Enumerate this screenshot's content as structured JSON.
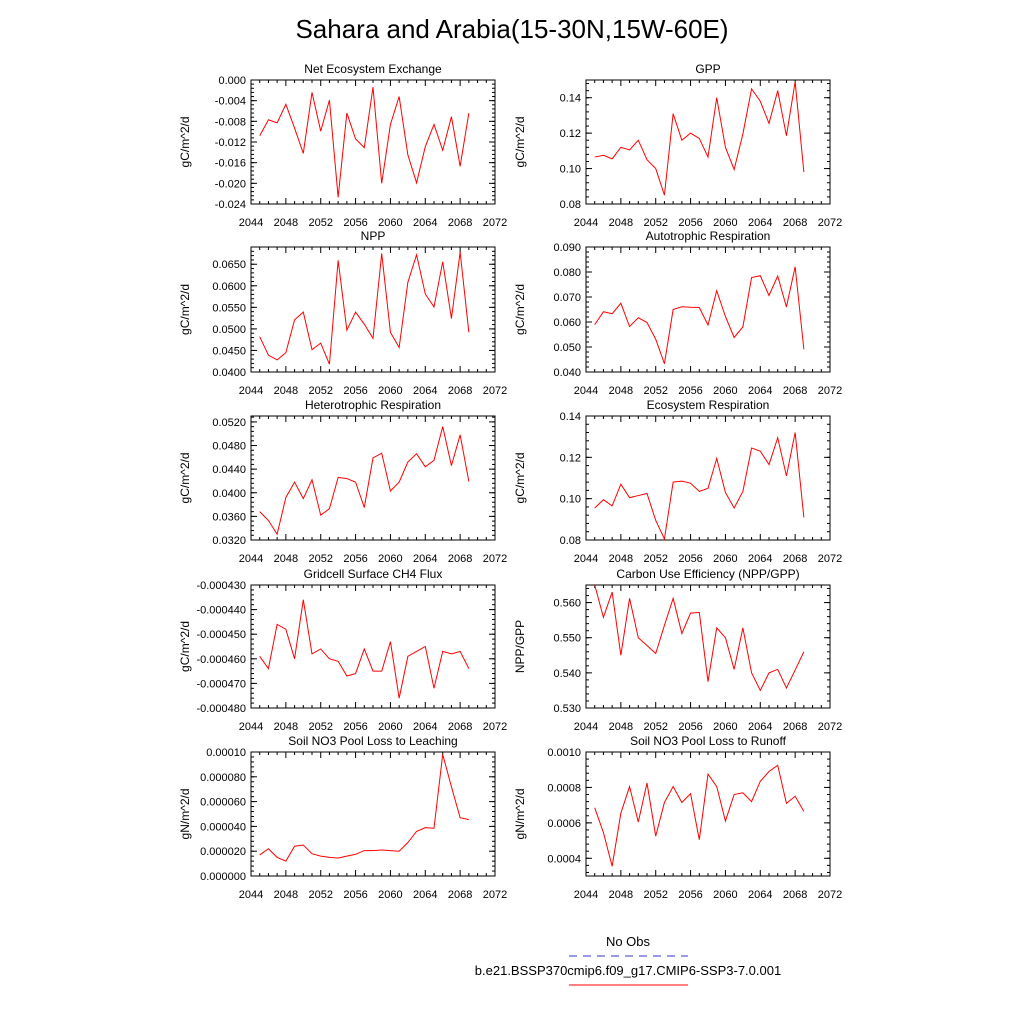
{
  "page": {
    "title": "Sahara and Arabia(15-30N,15W-60E)"
  },
  "legend": {
    "obs_label": "No Obs",
    "model_label": "b.e21.BSSP370cmip6.f09_g17.CMIP6-SSP3-7.0.001",
    "obs_color": "#3333cc",
    "model_color": "#ff0000"
  },
  "chart_data": [
    {
      "type": "line",
      "title": "Net Ecosystem Exchange",
      "ylabel": "gC/m^2/d",
      "xlim": [
        2044,
        2072
      ],
      "xticks": [
        "2044",
        "2048",
        "2052",
        "2056",
        "2060",
        "2064",
        "2068",
        "2072"
      ],
      "ylim": [
        -0.024,
        0.0
      ],
      "yticks": [
        "-0.024",
        "-0.020",
        "-0.016",
        "-0.012",
        "-0.008",
        "-0.004",
        "0.000"
      ],
      "x": [
        2045,
        2046,
        2047,
        2048,
        2049,
        2050,
        2051,
        2052,
        2053,
        2054,
        2055,
        2056,
        2057,
        2058,
        2059,
        2060,
        2061,
        2062,
        2063,
        2064,
        2065,
        2066,
        2067,
        2068,
        2069
      ],
      "series": [
        {
          "values": [
            -0.0108,
            -0.0077,
            -0.0083,
            -0.0047,
            -0.0093,
            -0.0142,
            -0.0024,
            -0.0099,
            -0.0039,
            -0.0227,
            -0.0064,
            -0.0114,
            -0.0131,
            -0.0014,
            -0.02,
            -0.0086,
            -0.0032,
            -0.0145,
            -0.0199,
            -0.0129,
            -0.0086,
            -0.0136,
            -0.0071,
            -0.0167,
            -0.0064
          ]
        }
      ]
    },
    {
      "type": "line",
      "title": "GPP",
      "ylabel": "gC/m^2/d",
      "xlim": [
        2044,
        2072
      ],
      "xticks": [
        "2044",
        "2048",
        "2052",
        "2056",
        "2060",
        "2064",
        "2068",
        "2072"
      ],
      "ylim": [
        0.08,
        0.15
      ],
      "yticks": [
        "0.08",
        "0.10",
        "0.12",
        "0.14"
      ],
      "x": [
        2045,
        2046,
        2047,
        2048,
        2049,
        2050,
        2051,
        2052,
        2053,
        2054,
        2055,
        2056,
        2057,
        2058,
        2059,
        2060,
        2061,
        2062,
        2063,
        2064,
        2065,
        2066,
        2067,
        2068,
        2069
      ],
      "series": [
        {
          "values": [
            0.1065,
            0.1075,
            0.1055,
            0.112,
            0.1105,
            0.116,
            0.105,
            0.1,
            0.085,
            0.131,
            0.116,
            0.12,
            0.117,
            0.1065,
            0.14,
            0.112,
            0.0995,
            0.1195,
            0.145,
            0.138,
            0.1255,
            0.144,
            0.1185,
            0.149,
            0.098
          ]
        }
      ]
    },
    {
      "type": "line",
      "title": "NPP",
      "ylabel": "gC/m^2/d",
      "xlim": [
        2044,
        2072
      ],
      "xticks": [
        "2044",
        "2048",
        "2052",
        "2056",
        "2060",
        "2064",
        "2068",
        "2072"
      ],
      "ylim": [
        0.04,
        0.069
      ],
      "yticks": [
        "0.0400",
        "0.0450",
        "0.0500",
        "0.0550",
        "0.0600",
        "0.0650"
      ],
      "x": [
        2045,
        2046,
        2047,
        2048,
        2049,
        2050,
        2051,
        2052,
        2053,
        2054,
        2055,
        2056,
        2057,
        2058,
        2059,
        2060,
        2061,
        2062,
        2063,
        2064,
        2065,
        2066,
        2067,
        2068,
        2069
      ],
      "series": [
        {
          "values": [
            0.0482,
            0.0439,
            0.0428,
            0.0445,
            0.0521,
            0.0539,
            0.0452,
            0.0467,
            0.0418,
            0.0659,
            0.0497,
            0.0539,
            0.0511,
            0.0478,
            0.0675,
            0.0492,
            0.0457,
            0.0608,
            0.0672,
            0.0581,
            0.0551,
            0.0656,
            0.0524,
            0.0678,
            0.0492
          ]
        }
      ]
    },
    {
      "type": "line",
      "title": "Autotrophic Respiration",
      "ylabel": "gC/m^2/d",
      "xlim": [
        2044,
        2072
      ],
      "xticks": [
        "2044",
        "2048",
        "2052",
        "2056",
        "2060",
        "2064",
        "2068",
        "2072"
      ],
      "ylim": [
        0.04,
        0.09
      ],
      "yticks": [
        "0.040",
        "0.050",
        "0.060",
        "0.070",
        "0.080",
        "0.090"
      ],
      "x": [
        2045,
        2046,
        2047,
        2048,
        2049,
        2050,
        2051,
        2052,
        2053,
        2054,
        2055,
        2056,
        2057,
        2058,
        2059,
        2060,
        2061,
        2062,
        2063,
        2064,
        2065,
        2066,
        2067,
        2068,
        2069
      ],
      "series": [
        {
          "values": [
            0.0589,
            0.0641,
            0.0633,
            0.0675,
            0.0582,
            0.0617,
            0.0598,
            0.0531,
            0.0433,
            0.065,
            0.0661,
            0.0659,
            0.0658,
            0.0588,
            0.0725,
            0.0622,
            0.0538,
            0.058,
            0.0778,
            0.0785,
            0.0706,
            0.0784,
            0.066,
            0.0821,
            0.0491
          ]
        }
      ]
    },
    {
      "type": "line",
      "title": "Heterotrophic Respiration",
      "ylabel": "gC/m^2/d",
      "xlim": [
        2044,
        2072
      ],
      "xticks": [
        "2044",
        "2048",
        "2052",
        "2056",
        "2060",
        "2064",
        "2068",
        "2072"
      ],
      "ylim": [
        0.032,
        0.053
      ],
      "yticks": [
        "0.0320",
        "0.0360",
        "0.0400",
        "0.0440",
        "0.0480",
        "0.0520"
      ],
      "x": [
        2045,
        2046,
        2047,
        2048,
        2049,
        2050,
        2051,
        2052,
        2053,
        2054,
        2055,
        2056,
        2057,
        2058,
        2059,
        2060,
        2061,
        2062,
        2063,
        2064,
        2065,
        2066,
        2067,
        2068,
        2069
      ],
      "series": [
        {
          "values": [
            0.0368,
            0.0353,
            0.033,
            0.0392,
            0.0418,
            0.039,
            0.0422,
            0.0362,
            0.0373,
            0.0426,
            0.0424,
            0.0418,
            0.0375,
            0.0459,
            0.0467,
            0.0403,
            0.0418,
            0.0452,
            0.0466,
            0.0444,
            0.0455,
            0.0512,
            0.0446,
            0.0498,
            0.0419
          ]
        }
      ]
    },
    {
      "type": "line",
      "title": "Ecosystem Respiration",
      "ylabel": "gC/m^2/d",
      "xlim": [
        2044,
        2072
      ],
      "xticks": [
        "2044",
        "2048",
        "2052",
        "2056",
        "2060",
        "2064",
        "2068",
        "2072"
      ],
      "ylim": [
        0.08,
        0.14
      ],
      "yticks": [
        "0.08",
        "0.10",
        "0.12",
        "0.14"
      ],
      "x": [
        2045,
        2046,
        2047,
        2048,
        2049,
        2050,
        2051,
        2052,
        2053,
        2054,
        2055,
        2056,
        2057,
        2058,
        2059,
        2060,
        2061,
        2062,
        2063,
        2064,
        2065,
        2066,
        2067,
        2068,
        2069
      ],
      "series": [
        {
          "values": [
            0.0955,
            0.0995,
            0.0965,
            0.107,
            0.1005,
            0.1015,
            0.1025,
            0.0895,
            0.0805,
            0.108,
            0.1085,
            0.1075,
            0.1035,
            0.105,
            0.1195,
            0.103,
            0.0955,
            0.1035,
            0.1245,
            0.123,
            0.1165,
            0.1295,
            0.111,
            0.132,
            0.091
          ]
        }
      ]
    },
    {
      "type": "line",
      "title": "Gridcell Surface CH4 Flux",
      "ylabel": "gC/m^2/d",
      "xlim": [
        2044,
        2072
      ],
      "xticks": [
        "2044",
        "2048",
        "2052",
        "2056",
        "2060",
        "2064",
        "2068",
        "2072"
      ],
      "ylim": [
        -0.00048,
        -0.00043
      ],
      "yticks": [
        "-0.000480",
        "-0.000470",
        "-0.000460",
        "-0.000450",
        "-0.000440",
        "-0.000430"
      ],
      "x": [
        2045,
        2046,
        2047,
        2048,
        2049,
        2050,
        2051,
        2052,
        2053,
        2054,
        2055,
        2056,
        2057,
        2058,
        2059,
        2060,
        2061,
        2062,
        2063,
        2064,
        2065,
        2066,
        2067,
        2068,
        2069
      ],
      "series": [
        {
          "values": [
            -0.000459,
            -0.000464,
            -0.000446,
            -0.000448,
            -0.00046,
            -0.000436,
            -0.000458,
            -0.000456,
            -0.00046,
            -0.000461,
            -0.000467,
            -0.000466,
            -0.000456,
            -0.000465,
            -0.000465,
            -0.000453,
            -0.000476,
            -0.000459,
            -0.000457,
            -0.000455,
            -0.000472,
            -0.000457,
            -0.000458,
            -0.000457,
            -0.000464
          ]
        }
      ]
    },
    {
      "type": "line",
      "title": "Carbon Use Efficiency (NPP/GPP)",
      "ylabel": "NPP/GPP",
      "xlim": [
        2044,
        2072
      ],
      "xticks": [
        "2044",
        "2048",
        "2052",
        "2056",
        "2060",
        "2064",
        "2068",
        "2072"
      ],
      "ylim": [
        0.53,
        0.565
      ],
      "yticks": [
        "0.530",
        "0.540",
        "0.550",
        "0.560"
      ],
      "x": [
        2045,
        2046,
        2047,
        2048,
        2049,
        2050,
        2051,
        2052,
        2053,
        2054,
        2055,
        2056,
        2057,
        2058,
        2059,
        2060,
        2061,
        2062,
        2063,
        2064,
        2065,
        2066,
        2067,
        2068,
        2069
      ],
      "series": [
        {
          "values": [
            0.565,
            0.5558,
            0.563,
            0.545,
            0.5612,
            0.55,
            0.5478,
            0.5455,
            0.5535,
            0.5612,
            0.5512,
            0.557,
            0.5572,
            0.5375,
            0.5528,
            0.55,
            0.541,
            0.5528,
            0.54,
            0.535,
            0.54,
            0.541,
            0.5357,
            0.5408,
            0.546
          ]
        }
      ]
    },
    {
      "type": "line",
      "title": "Soil NO3 Pool Loss to Leaching",
      "ylabel": "gN/m^2/d",
      "xlim": [
        2044,
        2072
      ],
      "xticks": [
        "2044",
        "2048",
        "2052",
        "2056",
        "2060",
        "2064",
        "2068",
        "2072"
      ],
      "ylim": [
        0.0,
        0.0001
      ],
      "yticks": [
        "0.000000",
        "0.000020",
        "0.000040",
        "0.000060",
        "0.000080",
        "0.00010"
      ],
      "x": [
        2045,
        2046,
        2047,
        2048,
        2049,
        2050,
        2051,
        2052,
        2053,
        2054,
        2055,
        2056,
        2057,
        2058,
        2059,
        2060,
        2061,
        2062,
        2063,
        2064,
        2065,
        2066,
        2067,
        2068,
        2069
      ],
      "series": [
        {
          "values": [
            1.7e-05,
            2.2e-05,
            1.5e-05,
            1.2e-05,
            2.4e-05,
            2.5e-05,
            1.8e-05,
            1.6e-05,
            1.5e-05,
            1.45e-05,
            1.6e-05,
            1.75e-05,
            2.05e-05,
            2.05e-05,
            2.1e-05,
            2.05e-05,
            2e-05,
            2.7e-05,
            3.6e-05,
            3.9e-05,
            3.85e-05,
            9.8e-05,
            7.2e-05,
            4.7e-05,
            4.55e-05
          ]
        }
      ]
    },
    {
      "type": "line",
      "title": "Soil NO3 Pool Loss to Runoff",
      "ylabel": "gN/m^2/d",
      "xlim": [
        2044,
        2072
      ],
      "xticks": [
        "2044",
        "2048",
        "2052",
        "2056",
        "2060",
        "2064",
        "2068",
        "2072"
      ],
      "ylim": [
        0.0003,
        0.001
      ],
      "yticks": [
        "0.0004",
        "0.0006",
        "0.0008",
        "0.0010"
      ],
      "x": [
        2045,
        2046,
        2047,
        2048,
        2049,
        2050,
        2051,
        2052,
        2053,
        2054,
        2055,
        2056,
        2057,
        2058,
        2059,
        2060,
        2061,
        2062,
        2063,
        2064,
        2065,
        2066,
        2067,
        2068,
        2069
      ],
      "series": [
        {
          "values": [
            0.000685,
            0.000545,
            0.000355,
            0.000655,
            0.000805,
            0.000605,
            0.000825,
            0.000525,
            0.000715,
            0.000805,
            0.000715,
            0.000765,
            0.000505,
            0.000875,
            0.000805,
            0.00061,
            0.00076,
            0.00077,
            0.00072,
            0.000835,
            0.00089,
            0.000925,
            0.00071,
            0.00075,
            0.000665
          ]
        }
      ]
    }
  ]
}
